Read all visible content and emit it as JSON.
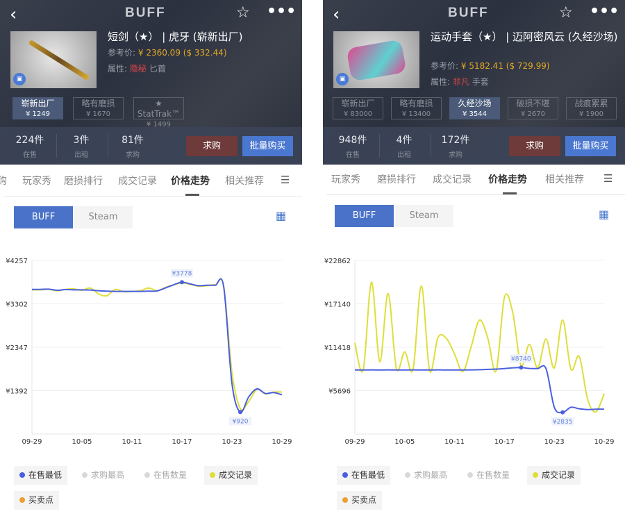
{
  "panels": [
    {
      "logo": "BUFF",
      "title": "短剑（★） | 虎牙 (崭新出厂)",
      "ref_label": "参考价:",
      "ref_price": "¥ 2360.09 ($ 332.44)",
      "attr_label": "属性:",
      "rarity": "隐秘",
      "type": "匕首",
      "wears": [
        {
          "name": "崭新出厂",
          "price": "¥ 1249",
          "selected": true
        },
        {
          "name": "略有磨损",
          "price": "¥ 1670",
          "selected": false
        },
        {
          "name": "★ StatTrak™",
          "price": "¥ 1499",
          "selected": false
        }
      ],
      "stats": [
        {
          "value": "224件",
          "label": "在售"
        },
        {
          "value": "3件",
          "label": "出租"
        },
        {
          "value": "81件",
          "label": "求购"
        }
      ],
      "buy_order": "求购",
      "bulk_buy": "批量购买",
      "tabs": [
        "购",
        "玩家秀",
        "磨损排行",
        "成交记录",
        "价格走势",
        "相关推荐"
      ],
      "active_tab": 4,
      "toggle": [
        "BUFF",
        "Steam"
      ],
      "legend": [
        {
          "label": "在售最低",
          "color": "#4a5fe0",
          "active": true
        },
        {
          "label": "求购最高",
          "color": "#d8d8d8",
          "active": false
        },
        {
          "label": "在售数量",
          "color": "#d8d8d8",
          "active": false
        },
        {
          "label": "成交记录",
          "color": "#dede3a",
          "active": true
        },
        {
          "label": "买卖点",
          "color": "#e8a030",
          "active": true
        }
      ]
    },
    {
      "logo": "BUFF",
      "title": "运动手套（★） | 迈阿密风云 (久经沙场)",
      "ref_label": "参考价:",
      "ref_price": "¥ 5182.41 ($ 729.99)",
      "attr_label": "属性:",
      "rarity": "非凡",
      "type": "手套",
      "wears": [
        {
          "name": "崭新出厂",
          "price": "¥ 83000",
          "selected": false
        },
        {
          "name": "略有磨损",
          "price": "¥ 13400",
          "selected": false
        },
        {
          "name": "久经沙场",
          "price": "¥ 3544",
          "selected": true
        },
        {
          "name": "破损不堪",
          "price": "¥ 2670",
          "selected": false
        },
        {
          "name": "战痕累累",
          "price": "¥ 1900",
          "selected": false
        }
      ],
      "stats": [
        {
          "value": "948件",
          "label": "在售"
        },
        {
          "value": "4件",
          "label": "出租"
        },
        {
          "value": "172件",
          "label": "求购"
        }
      ],
      "buy_order": "求购",
      "bulk_buy": "批量购买",
      "tabs": [
        "玩家秀",
        "磨损排行",
        "成交记录",
        "价格走势",
        "相关推荐"
      ],
      "active_tab": 3,
      "toggle": [
        "BUFF",
        "Steam"
      ],
      "legend": [
        {
          "label": "在售最低",
          "color": "#4a5fe0",
          "active": true
        },
        {
          "label": "求购最高",
          "color": "#d8d8d8",
          "active": false
        },
        {
          "label": "在售数量",
          "color": "#d8d8d8",
          "active": false
        },
        {
          "label": "成交记录",
          "color": "#dede3a",
          "active": true
        },
        {
          "label": "买卖点",
          "color": "#e8a030",
          "active": true
        }
      ]
    }
  ],
  "chart_data": [
    {
      "type": "line",
      "x": [
        "09-29",
        "09-30",
        "10-01",
        "10-02",
        "10-03",
        "10-04",
        "10-05",
        "10-06",
        "10-07",
        "10-08",
        "10-09",
        "10-10",
        "10-11",
        "10-12",
        "10-13",
        "10-14",
        "10-15",
        "10-16",
        "10-17",
        "10-18",
        "10-19",
        "10-20",
        "10-21",
        "10-22",
        "10-23",
        "10-24",
        "10-25",
        "10-26",
        "10-27",
        "10-28",
        "10-29"
      ],
      "xticks": [
        "09-29",
        "10-05",
        "10-11",
        "10-17",
        "10-23",
        "10-29"
      ],
      "yticks": [
        "¥4257",
        "¥3302",
        "¥2347",
        "¥1392"
      ],
      "ylim": [
        437,
        4257
      ],
      "grid": true,
      "series": [
        {
          "name": "在售最低",
          "color": "#4a5fe0",
          "values": [
            3620,
            3620,
            3625,
            3600,
            3615,
            3610,
            3610,
            3605,
            3590,
            3580,
            3575,
            3575,
            3575,
            3575,
            3580,
            3585,
            3650,
            3720,
            3778,
            3740,
            3700,
            3710,
            3710,
            3690,
            1550,
            920,
            1250,
            1430,
            1330,
            1350,
            1300
          ]
        },
        {
          "name": "成交记录",
          "color": "#dede3a",
          "values": [
            3610,
            3610,
            3620,
            3590,
            3620,
            3630,
            3600,
            3650,
            3520,
            3480,
            3620,
            3570,
            3575,
            3590,
            3650,
            3590,
            3660,
            3720,
            3760,
            3730,
            3690,
            3700,
            3720,
            3690,
            1800,
            1000,
            1150,
            1420,
            1320,
            1360,
            1360
          ]
        }
      ],
      "annotations": [
        {
          "x": "10-17",
          "label": "¥3778",
          "value": 3778
        },
        {
          "x": "10-24",
          "label": "¥920",
          "value": 920
        }
      ]
    },
    {
      "type": "line",
      "x": [
        "09-29",
        "09-30",
        "10-01",
        "10-02",
        "10-03",
        "10-04",
        "10-05",
        "10-06",
        "10-07",
        "10-08",
        "10-09",
        "10-10",
        "10-11",
        "10-12",
        "10-13",
        "10-14",
        "10-15",
        "10-16",
        "10-17",
        "10-18",
        "10-19",
        "10-20",
        "10-21",
        "10-22",
        "10-23",
        "10-24",
        "10-25",
        "10-26",
        "10-27",
        "10-28",
        "10-29"
      ],
      "xticks": [
        "09-29",
        "10-05",
        "10-11",
        "10-17",
        "10-23",
        "10-29"
      ],
      "yticks": [
        "¥22862",
        "¥17140",
        "¥11418",
        "¥5696"
      ],
      "ylim": [
        -26,
        22862
      ],
      "grid": true,
      "series": [
        {
          "name": "在售最低",
          "color": "#4a5fe0",
          "values": [
            8420,
            8420,
            8430,
            8420,
            8430,
            8420,
            8420,
            8430,
            8420,
            8420,
            8430,
            8420,
            8420,
            8420,
            8430,
            8450,
            8500,
            8530,
            8600,
            8700,
            8740,
            8620,
            8600,
            8600,
            3500,
            2835,
            3500,
            3300,
            3200,
            3250,
            3250
          ]
        },
        {
          "name": "成交记录",
          "color": "#dede3a",
          "values": [
            12000,
            8400,
            20000,
            9500,
            18500,
            8600,
            10800,
            8500,
            19500,
            8300,
            12700,
            12600,
            10500,
            8200,
            11500,
            15000,
            12600,
            8300,
            18000,
            16000,
            9000,
            11800,
            8700,
            12500,
            8700,
            15000,
            8500,
            10200,
            4600,
            2900,
            5300
          ]
        }
      ],
      "annotations": [
        {
          "x": "10-19",
          "label": "¥8740",
          "value": 8740
        },
        {
          "x": "10-24",
          "label": "¥2835",
          "value": 2835
        }
      ]
    }
  ]
}
